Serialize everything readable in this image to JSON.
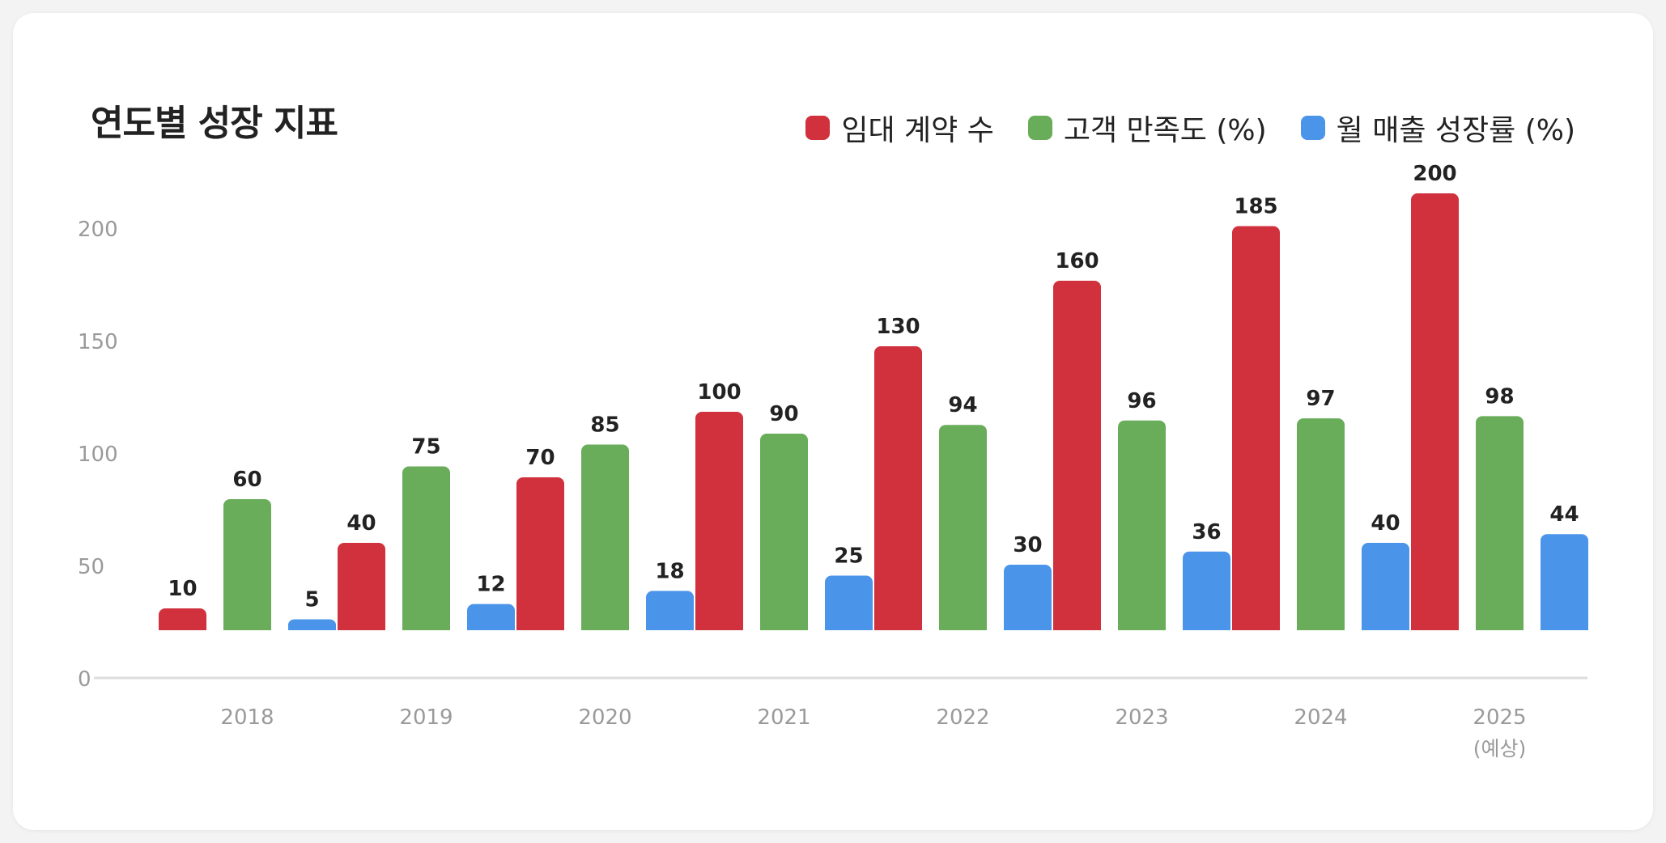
{
  "title": "연도별 성장 지표",
  "chart_data": {
    "type": "bar",
    "title": "연도별 성장 지표",
    "categories": [
      "2018",
      "2019",
      "2020",
      "2021",
      "2022",
      "2023",
      "2024",
      "2025"
    ],
    "category_sublabels": [
      "",
      "",
      "",
      "",
      "",
      "",
      "",
      "(예상)"
    ],
    "series": [
      {
        "name": "임대 계약 수",
        "color": "#d0313d",
        "values": [
          10,
          40,
          70,
          100,
          130,
          160,
          185,
          200
        ]
      },
      {
        "name": "고객 만족도 (%)",
        "color": "#69ad5a",
        "values": [
          60,
          75,
          85,
          90,
          94,
          96,
          97,
          98
        ]
      },
      {
        "name": "월 매출 성장률 (%)",
        "color": "#4a94ea",
        "values": [
          5,
          12,
          18,
          25,
          30,
          36,
          40,
          44
        ]
      }
    ],
    "y_ticks": [
      0,
      50,
      100,
      150,
      200
    ],
    "ylim": [
      0,
      200
    ],
    "grid": false,
    "legend": "top-right"
  }
}
